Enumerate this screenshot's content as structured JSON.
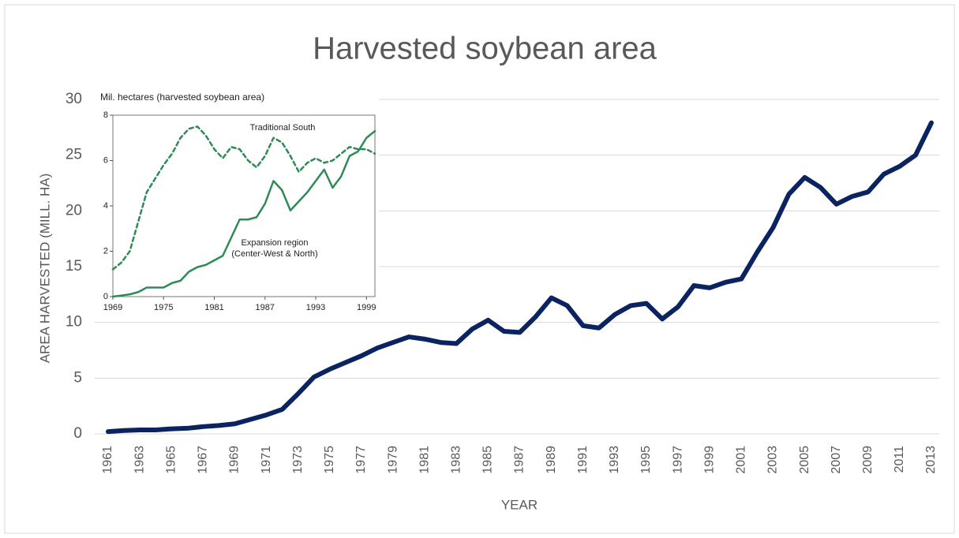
{
  "chart_data": [
    {
      "type": "line",
      "title": "Harvested soybean area",
      "y_label": "AREA HARVESTED (MILL. HA)",
      "x_label": "YEAR",
      "x": [
        1961,
        1962,
        1963,
        1964,
        1965,
        1966,
        1967,
        1968,
        1969,
        1970,
        1971,
        1972,
        1973,
        1974,
        1975,
        1976,
        1977,
        1978,
        1979,
        1980,
        1981,
        1982,
        1983,
        1984,
        1985,
        1986,
        1987,
        1988,
        1989,
        1990,
        1991,
        1992,
        1993,
        1994,
        1995,
        1996,
        1997,
        1998,
        1999,
        2000,
        2001,
        2002,
        2003,
        2004,
        2005,
        2006,
        2007,
        2008,
        2009,
        2010,
        2011,
        2012,
        2013
      ],
      "series": [
        {
          "color": "#0b2461",
          "values": [
            0.2,
            0.3,
            0.35,
            0.35,
            0.45,
            0.5,
            0.65,
            0.75,
            0.9,
            1.3,
            1.7,
            2.2,
            3.6,
            5.1,
            5.8,
            6.4,
            7.0,
            7.7,
            8.2,
            8.7,
            8.5,
            8.2,
            8.1,
            9.4,
            10.2,
            9.2,
            9.1,
            10.5,
            12.2,
            11.5,
            9.7,
            9.5,
            10.7,
            11.5,
            11.7,
            10.3,
            11.4,
            13.3,
            13.1,
            13.6,
            13.9,
            16.3,
            18.5,
            21.5,
            23.0,
            22.1,
            20.6,
            21.3,
            21.7,
            23.3,
            24.0,
            25.0,
            27.9
          ]
        }
      ],
      "xlim": [
        1961,
        2013
      ],
      "xticks": [
        1961,
        1963,
        1965,
        1967,
        1969,
        1971,
        1973,
        1975,
        1977,
        1979,
        1981,
        1983,
        1985,
        1987,
        1989,
        1991,
        1993,
        1995,
        1997,
        1999,
        2001,
        2003,
        2005,
        2007,
        2009,
        2011,
        2013
      ],
      "ylim": [
        0,
        30
      ],
      "yticks": [
        0,
        5,
        10,
        15,
        20,
        25,
        30
      ],
      "grid": true
    },
    {
      "type": "line",
      "y_label": "Mil. hectares (harvested soybean area)",
      "x": [
        1969,
        1970,
        1971,
        1972,
        1973,
        1974,
        1975,
        1976,
        1977,
        1978,
        1979,
        1980,
        1981,
        1982,
        1983,
        1984,
        1985,
        1986,
        1987,
        1988,
        1989,
        1990,
        1991,
        1992,
        1993,
        1994,
        1995,
        1996,
        1997,
        1998,
        1999,
        2000
      ],
      "series": [
        {
          "color": "#2e8b57",
          "dash": true,
          "values": [
            1.2,
            1.5,
            2.0,
            3.3,
            4.6,
            5.2,
            5.8,
            6.3,
            7.0,
            7.4,
            7.5,
            7.1,
            6.5,
            6.1,
            6.6,
            6.5,
            6.0,
            5.7,
            6.2,
            7.0,
            6.8,
            6.2,
            5.5,
            5.9,
            6.1,
            5.9,
            6.0,
            6.3,
            6.6,
            6.5,
            6.5,
            6.3
          ]
        },
        {
          "color": "#2e8b57",
          "dash": false,
          "values": [
            0.0,
            0.05,
            0.1,
            0.2,
            0.4,
            0.4,
            0.4,
            0.6,
            0.7,
            1.1,
            1.3,
            1.4,
            1.6,
            1.8,
            2.6,
            3.4,
            3.4,
            3.5,
            4.1,
            5.1,
            4.7,
            3.8,
            4.2,
            4.6,
            5.1,
            5.6,
            4.8,
            5.3,
            6.2,
            6.4,
            7.0,
            7.3
          ]
        }
      ],
      "annotations": [
        {
          "lines": [
            "Traditional South"
          ]
        },
        {
          "lines": [
            "Expansion region",
            "(Center-West & North)"
          ]
        }
      ],
      "xlim": [
        1969,
        2000
      ],
      "xticks": [
        1969,
        1975,
        1981,
        1987,
        1993,
        1999
      ],
      "ylim": [
        0,
        8
      ],
      "yticks": [
        0,
        2,
        4,
        6,
        8
      ]
    }
  ]
}
